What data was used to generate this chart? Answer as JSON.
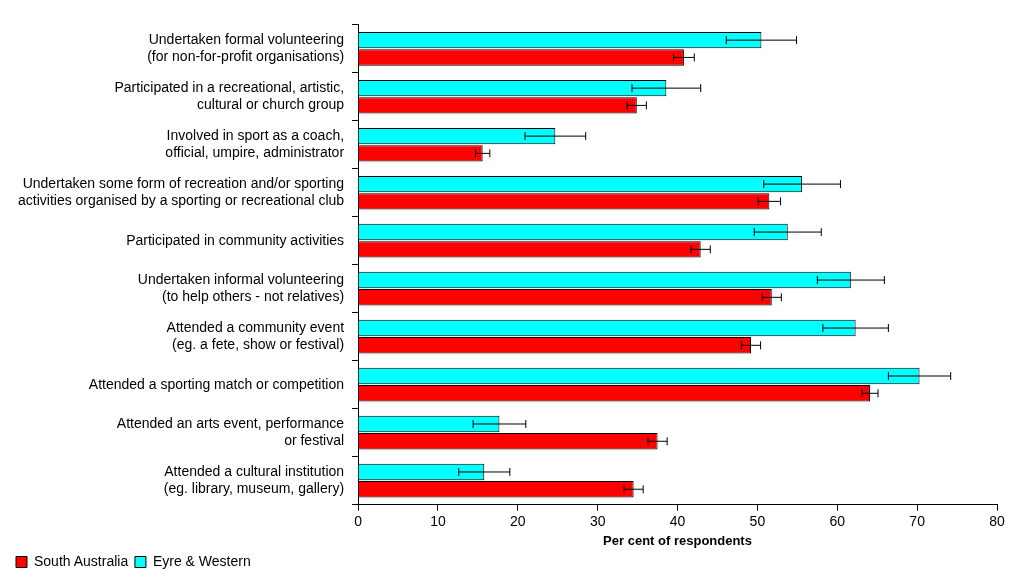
{
  "chart_data": {
    "type": "bar",
    "orientation": "horizontal",
    "xlabel": "Per cent of respondents",
    "categories": [
      "Undertaken formal volunteering\n(for non-for-profit organisations)",
      "Participated in a recreational, artistic,\ncultural or church group",
      "Involved in sport as a coach,\nofficial, umpire, administrator",
      "Undertaken some form of recreation and/or sporting\nactivities organised by a sporting or recreational club",
      "Participated in community activities",
      "Undertaken informal volunteering\n(to help others - not relatives)",
      "Attended a community event\n(eg. a fete, show or festival)",
      "Attended a sporting match or competition",
      "Attended an arts event, performance\nor festival",
      "Attended a cultural institution\n(eg. library, museum, gallery)"
    ],
    "series": [
      {
        "name": "South Australia",
        "color": "#ff0000",
        "values": [
          40.8,
          34.9,
          15.6,
          51.5,
          42.9,
          51.8,
          49.2,
          64.1,
          37.5,
          34.5
        ],
        "errors": [
          1.3,
          1.2,
          0.9,
          1.4,
          1.2,
          1.2,
          1.2,
          1.0,
          1.2,
          1.2
        ]
      },
      {
        "name": "Eyre & Western",
        "color": "#00ffff",
        "values": [
          50.5,
          38.6,
          24.7,
          55.6,
          53.8,
          61.7,
          62.3,
          70.3,
          17.7,
          15.8
        ],
        "errors": [
          4.4,
          4.3,
          3.8,
          4.8,
          4.2,
          4.2,
          4.1,
          3.9,
          3.3,
          3.2
        ]
      }
    ],
    "xlim": [
      0,
      80
    ],
    "xticks": [
      0,
      10,
      20,
      30,
      40,
      50,
      60,
      70,
      80
    ],
    "grid": false,
    "legend": "bottom left"
  }
}
